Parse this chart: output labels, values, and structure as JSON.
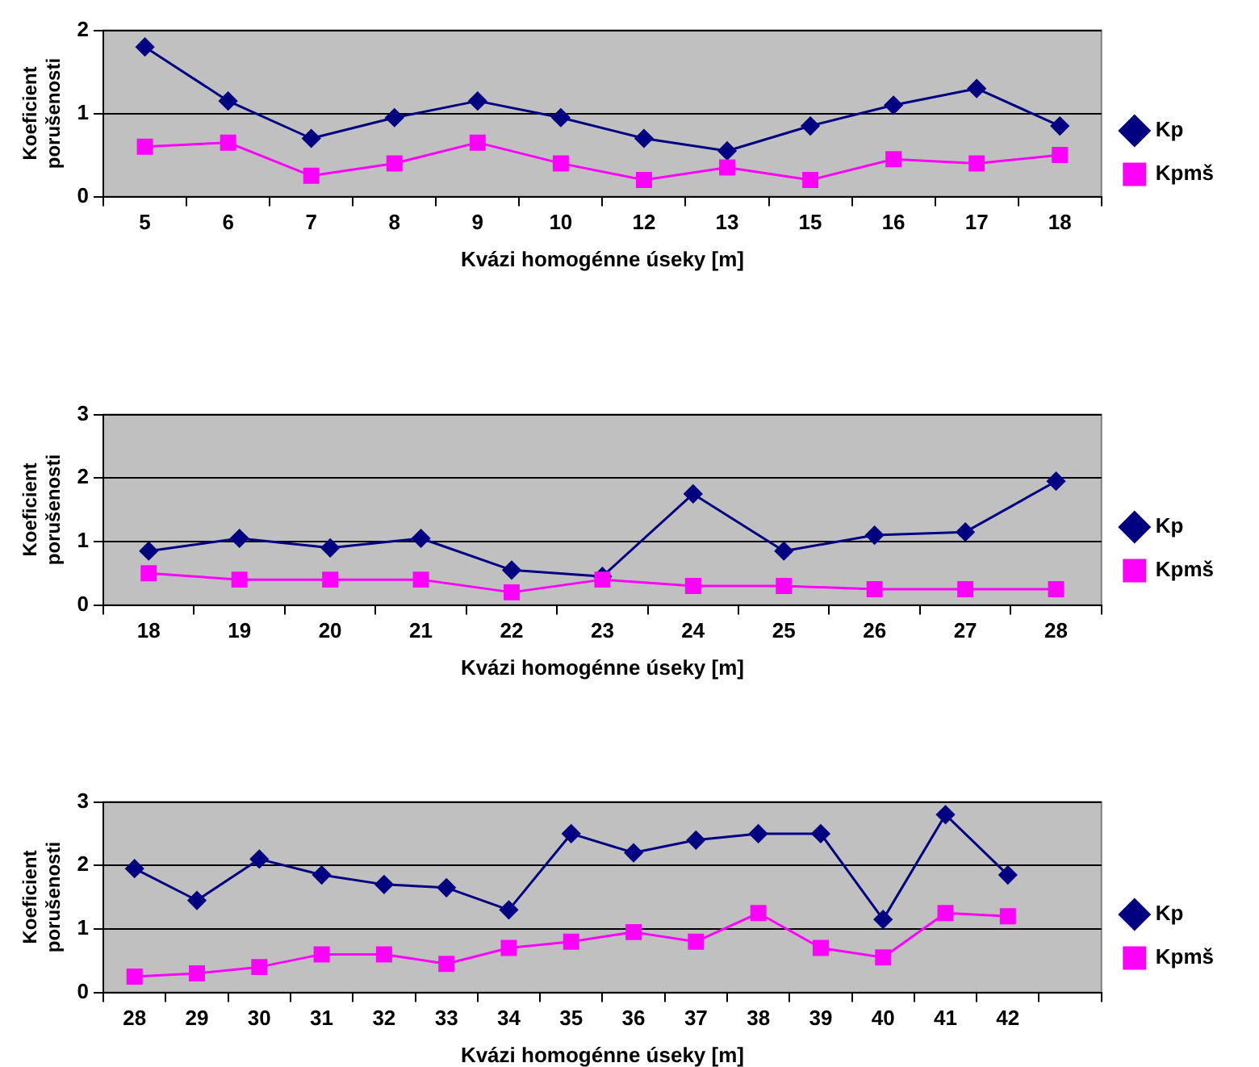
{
  "chart_data": [
    {
      "type": "line",
      "xlabel": "Kvázi homogénne úseky [m]",
      "ylabel": "Koeficient porušenosti",
      "categories": [
        "5",
        "6",
        "7",
        "8",
        "9",
        "10",
        "12",
        "13",
        "15",
        "16",
        "17",
        "18"
      ],
      "series": [
        {
          "name": "Kp",
          "color": "#000080",
          "marker": "diamond",
          "values": [
            1.8,
            1.15,
            0.7,
            0.95,
            1.15,
            0.95,
            0.7,
            0.55,
            0.85,
            1.1,
            1.3,
            0.85
          ]
        },
        {
          "name": "Kpmš",
          "color": "#ff00ff",
          "marker": "square",
          "values": [
            0.6,
            0.65,
            0.25,
            0.4,
            0.65,
            0.4,
            0.2,
            0.35,
            0.2,
            0.45,
            0.4,
            0.5
          ]
        }
      ],
      "ylim": [
        0,
        2
      ],
      "yticks": [
        0,
        1,
        2
      ],
      "grid": "y",
      "legend": "right"
    },
    {
      "type": "line",
      "xlabel": "Kvázi homogénne úseky [m]",
      "ylabel": "Koeficient porušenosti",
      "categories": [
        "18",
        "19",
        "20",
        "21",
        "22",
        "23",
        "24",
        "25",
        "26",
        "27",
        "28"
      ],
      "series": [
        {
          "name": "Kp",
          "color": "#000080",
          "marker": "diamond",
          "values": [
            0.85,
            1.05,
            0.9,
            1.05,
            0.55,
            0.45,
            1.75,
            0.85,
            1.1,
            1.15,
            1.95
          ]
        },
        {
          "name": "Kpmš",
          "color": "#ff00ff",
          "marker": "square",
          "values": [
            0.5,
            0.4,
            0.4,
            0.4,
            0.2,
            0.4,
            0.3,
            0.3,
            0.25,
            0.25,
            0.25
          ]
        }
      ],
      "ylim": [
        0,
        3
      ],
      "yticks": [
        0,
        1,
        2,
        3
      ],
      "grid": "y",
      "legend": "right"
    },
    {
      "type": "line",
      "xlabel": "Kvázi homogénne úseky [m]",
      "ylabel": "Koeficient porušenosti",
      "categories": [
        "28",
        "29",
        "30",
        "31",
        "32",
        "33",
        "34",
        "35",
        "36",
        "37",
        "38",
        "39",
        "40",
        "41",
        "42",
        null
      ],
      "series": [
        {
          "name": "Kp",
          "color": "#000080",
          "marker": "diamond",
          "values": [
            1.95,
            1.45,
            2.1,
            1.85,
            1.7,
            1.65,
            1.3,
            2.5,
            2.2,
            2.4,
            2.5,
            2.5,
            1.15,
            2.8,
            1.85,
            null
          ]
        },
        {
          "name": "Kpmš",
          "color": "#ff00ff",
          "marker": "square",
          "values": [
            0.25,
            0.3,
            0.4,
            0.6,
            0.6,
            0.45,
            0.7,
            0.8,
            0.95,
            0.8,
            1.25,
            0.7,
            0.55,
            1.25,
            1.2,
            null
          ]
        }
      ],
      "ylim": [
        0,
        3
      ],
      "yticks": [
        0,
        1,
        2,
        3
      ],
      "grid": "y",
      "legend": "right"
    }
  ]
}
